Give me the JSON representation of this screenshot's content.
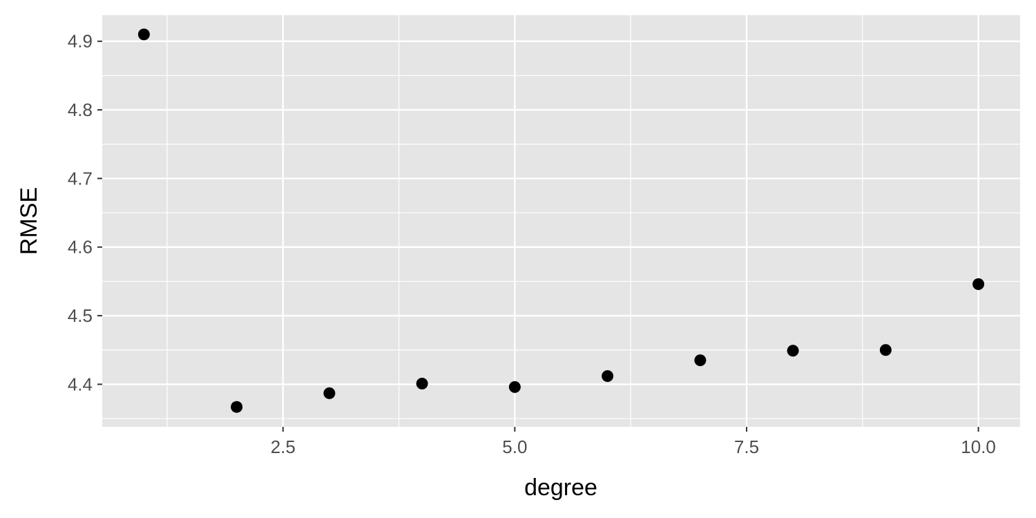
{
  "chart_data": {
    "type": "scatter",
    "title": "",
    "xlabel": "degree",
    "ylabel": "RMSE",
    "xlim": [
      0.55,
      10.45
    ],
    "ylim": [
      4.338,
      4.938
    ],
    "x_ticks": [
      2.5,
      5.0,
      7.5,
      10.0
    ],
    "x_tick_labels": [
      "2.5",
      "5.0",
      "7.5",
      "10.0"
    ],
    "y_ticks": [
      4.4,
      4.5,
      4.6,
      4.7,
      4.8,
      4.9
    ],
    "y_tick_labels": [
      "4.4",
      "4.5",
      "4.6",
      "4.7",
      "4.8",
      "4.9"
    ],
    "grid": true,
    "points": [
      {
        "x": 1,
        "y": 4.91
      },
      {
        "x": 2,
        "y": 4.367
      },
      {
        "x": 3,
        "y": 4.387
      },
      {
        "x": 4,
        "y": 4.401
      },
      {
        "x": 5,
        "y": 4.396
      },
      {
        "x": 6,
        "y": 4.412
      },
      {
        "x": 7,
        "y": 4.435
      },
      {
        "x": 8,
        "y": 4.449
      },
      {
        "x": 9,
        "y": 4.45
      },
      {
        "x": 10,
        "y": 4.546
      }
    ],
    "colors": {
      "panel_background": "#e5e5e5",
      "grid": "#ffffff",
      "point": "#000000",
      "axis_text": "#4d4d4d",
      "axis_ticks": "#333333"
    }
  }
}
